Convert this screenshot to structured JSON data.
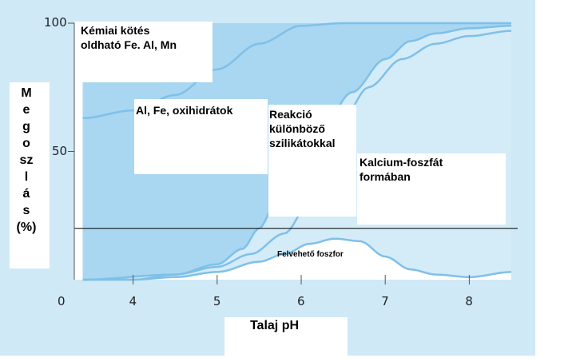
{
  "colors": {
    "frame_background": "#cfe9f7",
    "plot_background": "#ffffff",
    "band_dark": "#a9d6f1",
    "band_light": "#d4ebf8",
    "boundary_line": "#7fc0e8",
    "axis": "#555555"
  },
  "y_axis_label": "M\ne\ng\no\nsz\nl\ná\ns\n(%)",
  "x_axis_label": "Talaj pH",
  "chart_data": {
    "type": "area",
    "xlabel": "Talaj pH",
    "ylabel": "Megoszlás (%)",
    "xlim": [
      3.3,
      8.5
    ],
    "ylim": [
      0,
      100
    ],
    "y_ticks": [
      50,
      100
    ],
    "x_ticks": [
      4,
      5,
      6,
      7,
      8
    ],
    "x_tick_labels": [
      "4",
      "5",
      "6",
      "7",
      "8"
    ],
    "y_tick_labels": [
      "50",
      "100"
    ],
    "origin_label": "0",
    "reference_line_y": 20,
    "boundaries": [
      {
        "x": [
          3.4,
          4.0,
          4.5,
          5.0,
          5.5,
          6.0,
          6.5
        ],
        "y": [
          63,
          66,
          72,
          82,
          92,
          99,
          100
        ]
      },
      {
        "x": [
          3.4,
          4.5,
          5.0,
          5.3,
          5.5,
          5.7,
          6.0,
          6.3,
          6.6,
          7.0,
          7.3,
          7.6,
          8.0,
          8.5
        ],
        "y": [
          0,
          2,
          6,
          12,
          20,
          30,
          48,
          62,
          73,
          86,
          93,
          96,
          98,
          99
        ]
      },
      {
        "x": [
          3.4,
          4.0,
          4.5,
          5.0,
          5.4,
          5.8,
          6.1,
          6.3,
          6.5,
          6.8,
          7.2,
          7.6,
          8.0,
          8.5
        ],
        "y": [
          0,
          0,
          2,
          5,
          10,
          18,
          30,
          48,
          63,
          75,
          86,
          92,
          95,
          97
        ]
      },
      {
        "x": [
          3.4,
          4.0,
          4.5,
          5.0,
          5.5,
          5.8,
          6.1,
          6.4,
          6.7,
          7.0,
          7.3,
          7.6,
          8.0,
          8.5
        ],
        "y": [
          0,
          0,
          1,
          3,
          7,
          10,
          14,
          16,
          15,
          9,
          4,
          2,
          1,
          3
        ]
      }
    ],
    "regions": [
      {
        "label": "Kémiai kötés\noldható Fe. Al, Mn"
      },
      {
        "label": "Al, Fe, oxihidrátok"
      },
      {
        "label": "Reakció\nkülönböző\nszilikátokkal"
      },
      {
        "label": "Kalcium-foszfát\nformában"
      },
      {
        "label": "Felvehető foszfor"
      }
    ]
  }
}
